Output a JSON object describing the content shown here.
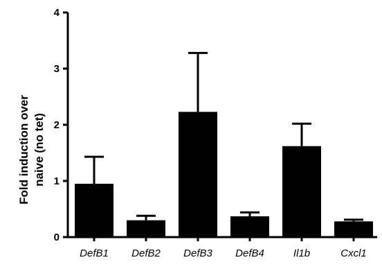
{
  "chart_data": {
    "type": "bar",
    "title": "",
    "xlabel": "",
    "ylabel_lines": [
      "Fold induction over",
      "naive (no tet)"
    ],
    "ylim": [
      0,
      4
    ],
    "yticks": [
      0,
      1,
      2,
      3,
      4
    ],
    "categories": [
      "DefB1",
      "DefB2",
      "DefB3",
      "DefB4",
      "Il1b",
      "Cxcl1"
    ],
    "values": [
      0.95,
      0.3,
      2.23,
      0.37,
      1.62,
      0.28
    ],
    "error_upper": [
      0.48,
      0.08,
      1.05,
      0.07,
      0.4,
      0.03
    ],
    "grid": false,
    "bar_color": "#000000"
  }
}
